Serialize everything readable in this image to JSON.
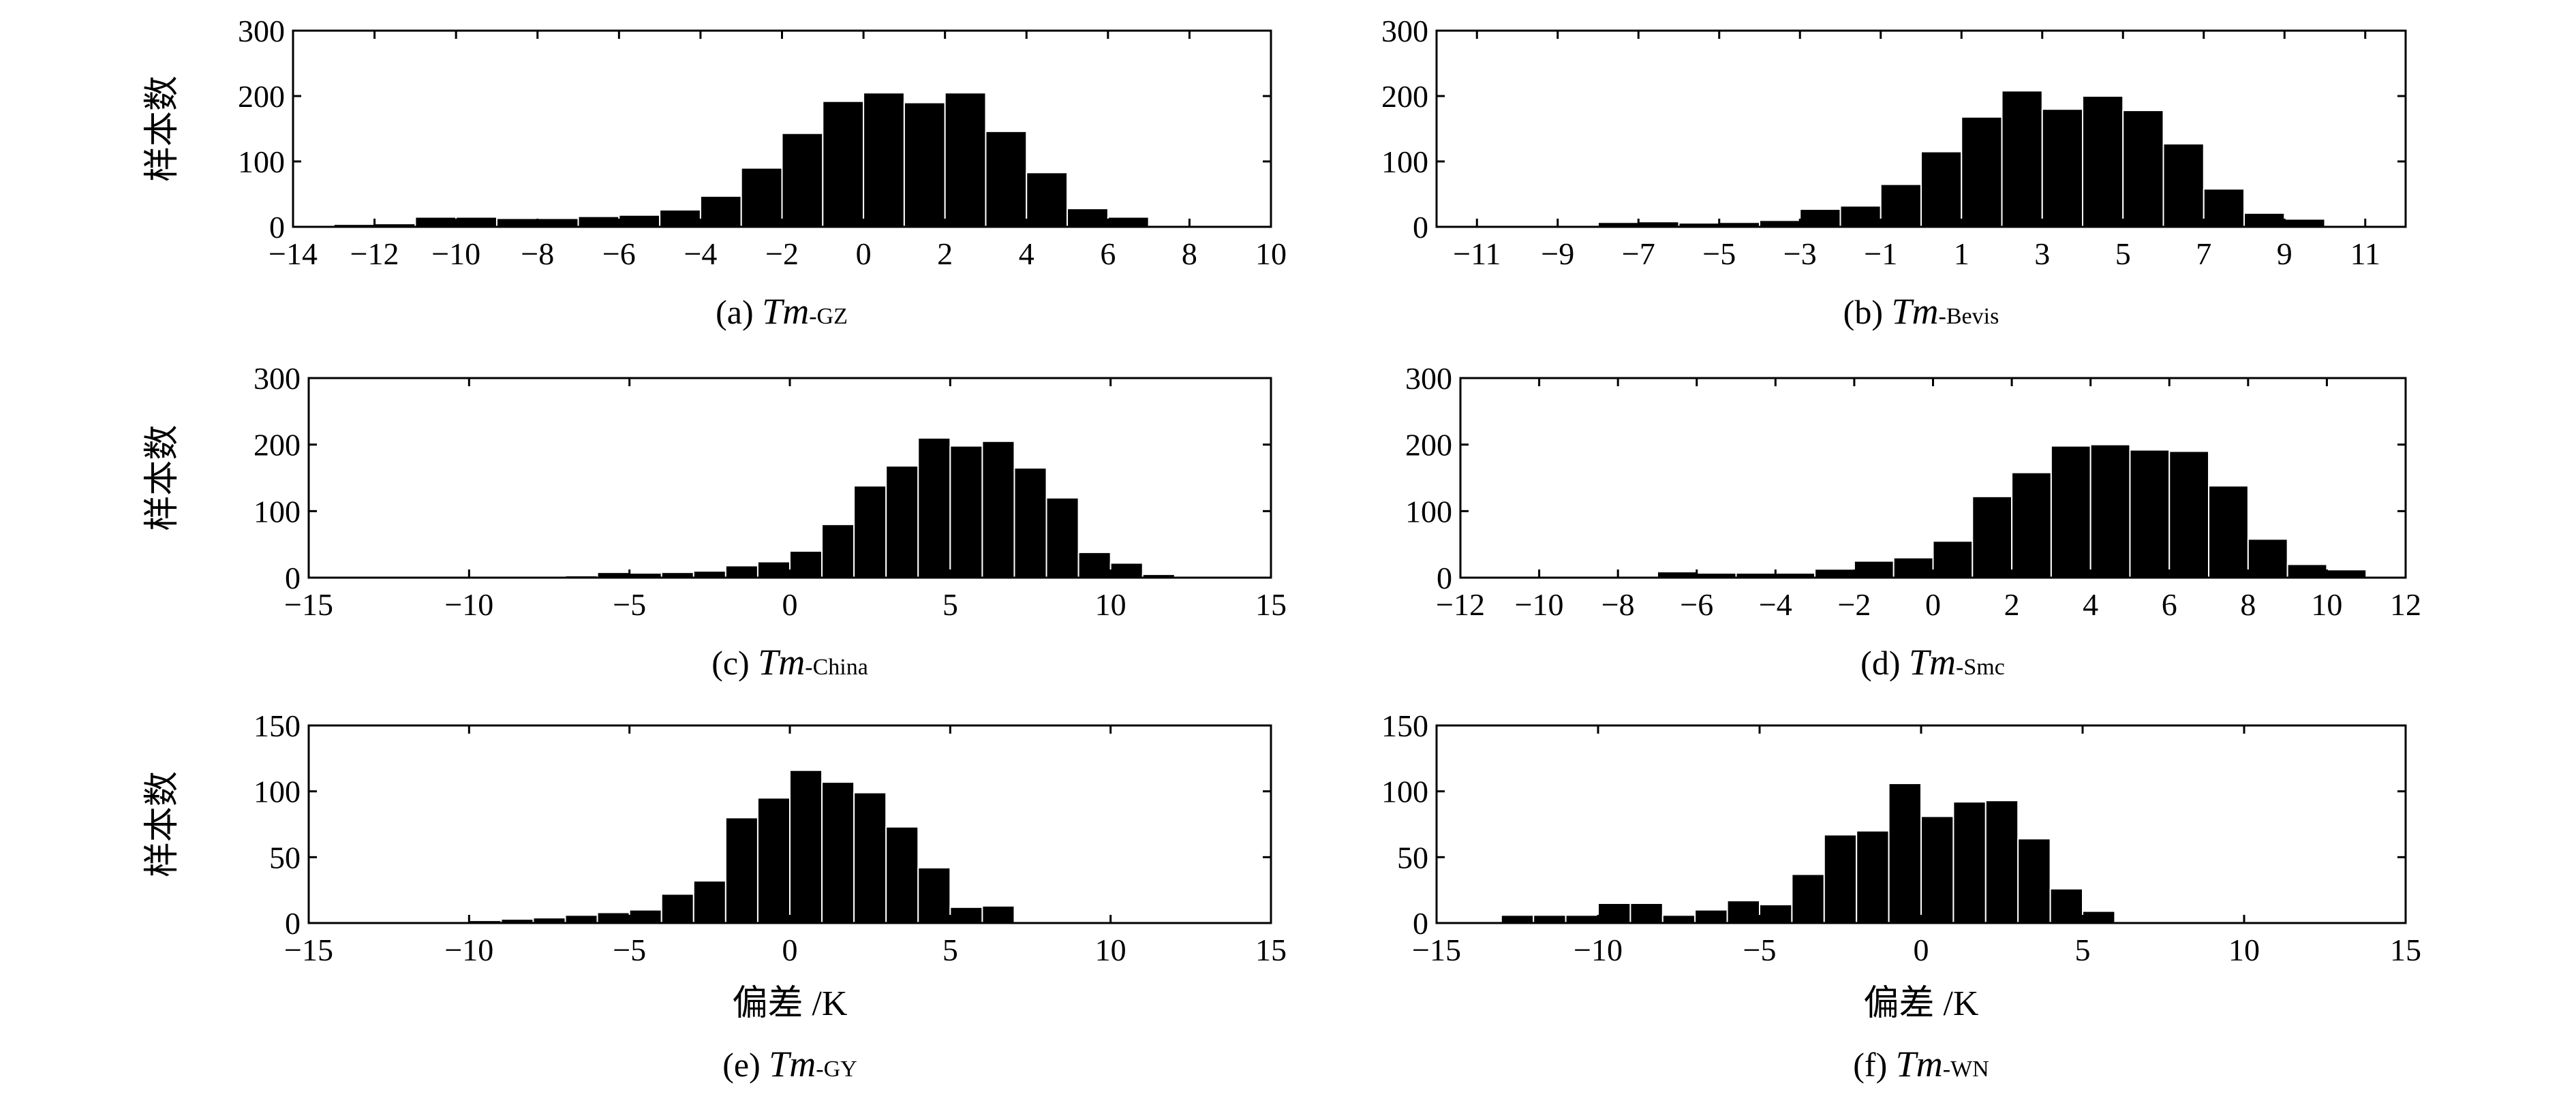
{
  "chart_data": [
    {
      "type": "bar",
      "id": "a",
      "caption": {
        "prefix": "(a) ",
        "var": "T",
        "var_sub_italic": "m",
        "sub": "-GZ"
      },
      "ylabel": "样本数",
      "xlabel": "",
      "xlim": [
        -14,
        10
      ],
      "ylim": [
        0,
        300
      ],
      "xticks": [
        -14,
        -12,
        -10,
        -8,
        -6,
        -4,
        -2,
        0,
        2,
        4,
        6,
        8,
        10
      ],
      "xtick_labels": [
        "−14",
        "−12",
        "−10",
        "−8",
        "−6",
        "−4",
        "−2",
        "0",
        "2",
        "4",
        "6",
        "8",
        "10"
      ],
      "yticks": [
        0,
        100,
        200,
        300
      ],
      "ytick_labels": [
        "0",
        "100",
        "200",
        "300"
      ],
      "bin_edges": [
        -14,
        -13,
        -12,
        -11,
        -10,
        -9,
        -8,
        -7,
        -6,
        -5,
        -4,
        -3,
        -2,
        -1,
        0,
        1,
        2,
        3,
        4,
        5,
        6,
        7,
        8,
        9,
        10
      ],
      "values": [
        0,
        4,
        5,
        15,
        15,
        13,
        13,
        16,
        18,
        26,
        47,
        90,
        143,
        192,
        205,
        190,
        205,
        146,
        83,
        28,
        15,
        2,
        1,
        1
      ]
    },
    {
      "type": "bar",
      "id": "b",
      "caption": {
        "prefix": "(b) ",
        "var": "T",
        "var_sub_italic": "m",
        "sub": "-Bevis"
      },
      "ylabel": "",
      "xlabel": "",
      "xlim": [
        -12,
        12
      ],
      "ylim": [
        0,
        300
      ],
      "xticks": [
        -11,
        -9,
        -7,
        -5,
        -3,
        -1,
        1,
        3,
        5,
        7,
        9,
        11
      ],
      "xtick_labels": [
        "−11",
        "−9",
        "−7",
        "−5",
        "−3",
        "−1",
        "1",
        "3",
        "5",
        "7",
        "9",
        "11"
      ],
      "yticks": [
        0,
        100,
        200,
        300
      ],
      "ytick_labels": [
        "0",
        "100",
        "200",
        "300"
      ],
      "bin_edges": [
        -12,
        -11,
        -10,
        -9,
        -8,
        -7,
        -6,
        -5,
        -4,
        -3,
        -2,
        -1,
        0,
        1,
        2,
        3,
        4,
        5,
        6,
        7,
        8,
        9,
        10,
        11,
        12
      ],
      "values": [
        1,
        1,
        1,
        1,
        7,
        8,
        6,
        7,
        10,
        27,
        32,
        65,
        115,
        168,
        208,
        180,
        200,
        178,
        127,
        58,
        21,
        12,
        1,
        1
      ]
    },
    {
      "type": "bar",
      "id": "c",
      "caption": {
        "prefix": "(c) ",
        "var": "T",
        "var_sub_italic": "m",
        "sub": "-China"
      },
      "ylabel": "样本数",
      "xlabel": "",
      "xlim": [
        -15,
        15
      ],
      "ylim": [
        0,
        300
      ],
      "xticks": [
        -15,
        -10,
        -5,
        0,
        5,
        10,
        15
      ],
      "xtick_labels": [
        "−15",
        "−10",
        "−5",
        "0",
        "5",
        "10",
        "15"
      ],
      "yticks": [
        0,
        100,
        200,
        300
      ],
      "ytick_labels": [
        "0",
        "100",
        "200",
        "300"
      ],
      "bin_edges": [
        -15,
        -14,
        -13,
        -12,
        -11,
        -10,
        -9,
        -8,
        -7,
        -6,
        -5,
        -4,
        -3,
        -2,
        -1,
        0,
        1,
        2,
        3,
        4,
        5,
        6,
        7,
        8,
        9,
        10,
        11,
        12,
        13,
        14,
        15
      ],
      "values": [
        0,
        0,
        1,
        1,
        1,
        2,
        1,
        2,
        3,
        8,
        7,
        8,
        10,
        18,
        24,
        40,
        80,
        138,
        168,
        210,
        198,
        205,
        165,
        120,
        38,
        22,
        5,
        1,
        0,
        0
      ]
    },
    {
      "type": "bar",
      "id": "d",
      "caption": {
        "prefix": "(d) ",
        "var": "T",
        "var_sub_italic": "m",
        "sub": "-Smc"
      },
      "ylabel": "",
      "xlabel": "",
      "xlim": [
        -12,
        12
      ],
      "ylim": [
        0,
        300
      ],
      "xticks": [
        -12,
        -10,
        -8,
        -6,
        -4,
        -2,
        0,
        2,
        4,
        6,
        8,
        10,
        12
      ],
      "xtick_labels": [
        "−12",
        "−10",
        "−8",
        "−6",
        "−4",
        "−2",
        "0",
        "2",
        "4",
        "6",
        "8",
        "10",
        "12"
      ],
      "yticks": [
        0,
        100,
        200,
        300
      ],
      "ytick_labels": [
        "0",
        "100",
        "200",
        "300"
      ],
      "bin_edges": [
        -12,
        -11,
        -10,
        -9,
        -8,
        -7,
        -6,
        -5,
        -4,
        -3,
        -2,
        -1,
        0,
        1,
        2,
        3,
        4,
        5,
        6,
        7,
        8,
        9,
        10,
        11,
        12
      ],
      "values": [
        1,
        2,
        1,
        2,
        2,
        9,
        7,
        7,
        7,
        13,
        25,
        30,
        55,
        122,
        158,
        198,
        200,
        192,
        190,
        138,
        58,
        20,
        12,
        1
      ]
    },
    {
      "type": "bar",
      "id": "e",
      "caption": {
        "prefix": "(e) ",
        "var": "T",
        "var_sub_italic": "m",
        "sub": "-GY"
      },
      "ylabel": "样本数",
      "xlabel": "偏差 /K",
      "xlim": [
        -15,
        15
      ],
      "ylim": [
        0,
        150
      ],
      "xticks": [
        -15,
        -10,
        -5,
        0,
        5,
        10,
        15
      ],
      "xtick_labels": [
        "−15",
        "−10",
        "−5",
        "0",
        "5",
        "10",
        "15"
      ],
      "yticks": [
        0,
        50,
        100,
        150
      ],
      "ytick_labels": [
        "0",
        "50",
        "100",
        "150"
      ],
      "bin_edges": [
        -15,
        -14,
        -13,
        -12,
        -11,
        -10,
        -9,
        -8,
        -7,
        -6,
        -5,
        -4,
        -3,
        -2,
        -1,
        0,
        1,
        2,
        3,
        4,
        5,
        6,
        7,
        8,
        9,
        10,
        11,
        12,
        13,
        14,
        15
      ],
      "values": [
        0,
        0,
        1,
        1,
        1,
        2,
        3,
        4,
        6,
        8,
        10,
        22,
        32,
        80,
        95,
        116,
        107,
        99,
        73,
        42,
        12,
        13,
        1,
        1,
        0,
        0,
        0,
        0,
        0,
        0
      ]
    },
    {
      "type": "bar",
      "id": "f",
      "caption": {
        "prefix": "(f) ",
        "var": "T",
        "var_sub_italic": "m",
        "sub": "-WN"
      },
      "ylabel": "",
      "xlabel": "偏差 /K",
      "xlim": [
        -15,
        15
      ],
      "ylim": [
        0,
        150
      ],
      "xticks": [
        -15,
        -10,
        -5,
        0,
        5,
        10,
        15
      ],
      "xtick_labels": [
        "−15",
        "−10",
        "−5",
        "0",
        "5",
        "10",
        "15"
      ],
      "yticks": [
        0,
        50,
        100,
        150
      ],
      "ytick_labels": [
        "0",
        "50",
        "100",
        "150"
      ],
      "bin_edges": [
        -15,
        -14,
        -13,
        -12,
        -11,
        -10,
        -9,
        -8,
        -7,
        -6,
        -5,
        -4,
        -3,
        -2,
        -1,
        0,
        1,
        2,
        3,
        4,
        5,
        6,
        7,
        8,
        9,
        10,
        11,
        12,
        13,
        14,
        15
      ],
      "values": [
        0,
        0,
        6,
        6,
        6,
        15,
        15,
        6,
        10,
        17,
        14,
        37,
        67,
        70,
        106,
        81,
        92,
        93,
        64,
        26,
        9,
        1,
        1,
        0,
        0,
        0,
        0,
        0,
        0,
        0
      ]
    }
  ],
  "colors": {
    "bar_fill": "#000000",
    "bar_edge": "#ffffff",
    "axis": "#000000"
  }
}
